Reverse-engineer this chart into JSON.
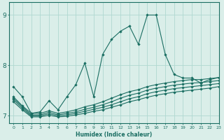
{
  "title": "",
  "xlabel": "Humidex (Indice chaleur)",
  "bg_color": "#daeee9",
  "grid_color": "#b0d8d0",
  "line_color": "#1a6e62",
  "xlim": [
    -0.5,
    23
  ],
  "ylim": [
    6.85,
    9.25
  ],
  "yticks": [
    7,
    8,
    9
  ],
  "xticks": [
    0,
    1,
    2,
    3,
    4,
    5,
    6,
    7,
    8,
    9,
    10,
    11,
    12,
    13,
    14,
    15,
    16,
    17,
    18,
    19,
    20,
    21,
    22,
    23
  ],
  "lines": [
    {
      "x": [
        0,
        1,
        2,
        3,
        4,
        5,
        6,
        7,
        8,
        9,
        10,
        11,
        12,
        13,
        14,
        15,
        16,
        17,
        18,
        19,
        20,
        21,
        22,
        23
      ],
      "y": [
        7.58,
        7.38,
        7.05,
        7.08,
        7.3,
        7.12,
        7.38,
        7.62,
        8.05,
        7.38,
        8.22,
        8.52,
        8.68,
        8.78,
        8.42,
        9.0,
        9.0,
        8.22,
        7.82,
        7.75,
        7.75,
        7.65,
        7.72,
        7.76
      ]
    },
    {
      "x": [
        0,
        1,
        2,
        3,
        4,
        5,
        6,
        7,
        8,
        9,
        10,
        11,
        12,
        13,
        14,
        15,
        16,
        17,
        18,
        19,
        20,
        21,
        22,
        23
      ],
      "y": [
        7.38,
        7.2,
        7.05,
        7.05,
        7.1,
        7.05,
        7.08,
        7.12,
        7.18,
        7.22,
        7.28,
        7.35,
        7.42,
        7.48,
        7.52,
        7.58,
        7.62,
        7.65,
        7.68,
        7.7,
        7.72,
        7.72,
        7.74,
        7.76
      ]
    },
    {
      "x": [
        0,
        1,
        2,
        3,
        4,
        5,
        6,
        7,
        8,
        9,
        10,
        11,
        12,
        13,
        14,
        15,
        16,
        17,
        18,
        19,
        20,
        21,
        22,
        23
      ],
      "y": [
        7.35,
        7.18,
        7.02,
        7.02,
        7.07,
        7.02,
        7.05,
        7.08,
        7.13,
        7.17,
        7.22,
        7.28,
        7.35,
        7.41,
        7.45,
        7.51,
        7.55,
        7.58,
        7.61,
        7.63,
        7.65,
        7.66,
        7.68,
        7.7
      ]
    },
    {
      "x": [
        0,
        1,
        2,
        3,
        4,
        5,
        6,
        7,
        8,
        9,
        10,
        11,
        12,
        13,
        14,
        15,
        16,
        17,
        18,
        19,
        20,
        21,
        22,
        23
      ],
      "y": [
        7.32,
        7.15,
        7.0,
        7.0,
        7.04,
        7.0,
        7.02,
        7.05,
        7.09,
        7.13,
        7.17,
        7.22,
        7.28,
        7.34,
        7.38,
        7.44,
        7.48,
        7.51,
        7.54,
        7.56,
        7.58,
        7.6,
        7.62,
        7.64
      ]
    },
    {
      "x": [
        0,
        1,
        2,
        3,
        4,
        5,
        6,
        7,
        8,
        9,
        10,
        11,
        12,
        13,
        14,
        15,
        16,
        17,
        18,
        19,
        20,
        21,
        22,
        23
      ],
      "y": [
        7.28,
        7.12,
        6.98,
        6.98,
        7.01,
        6.98,
        6.99,
        7.02,
        7.05,
        7.09,
        7.12,
        7.17,
        7.22,
        7.28,
        7.32,
        7.37,
        7.41,
        7.44,
        7.47,
        7.49,
        7.51,
        7.53,
        7.55,
        7.58
      ]
    }
  ]
}
